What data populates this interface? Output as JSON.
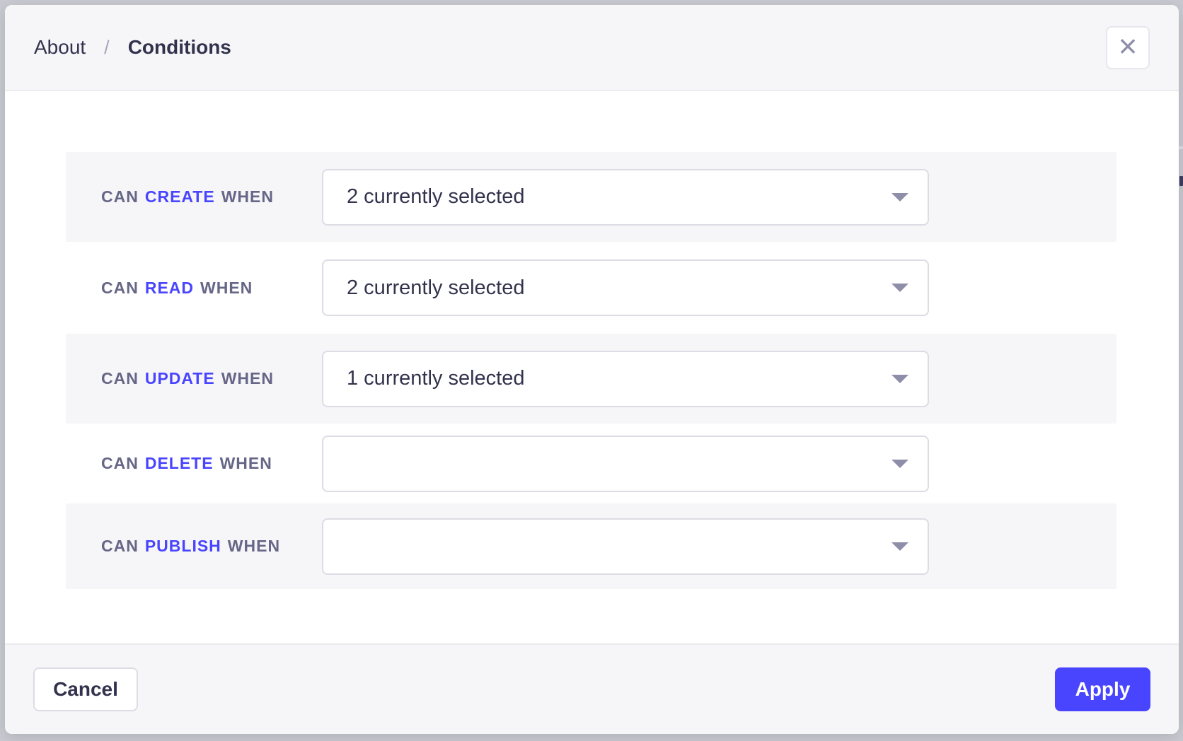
{
  "header": {
    "breadcrumb": {
      "parent": "About",
      "separator": "/",
      "current": "Conditions"
    }
  },
  "icons": {
    "close": "×",
    "dropdown_caret": "caret-down"
  },
  "rows": [
    {
      "prefix": "CAN",
      "action": "CREATE",
      "suffix": "WHEN",
      "value": "2 currently selected"
    },
    {
      "prefix": "CAN",
      "action": "READ",
      "suffix": "WHEN",
      "value": "2 currently selected"
    },
    {
      "prefix": "CAN",
      "action": "UPDATE",
      "suffix": "WHEN",
      "value": "1 currently selected"
    },
    {
      "prefix": "CAN",
      "action": "DELETE",
      "suffix": "WHEN",
      "value": ""
    },
    {
      "prefix": "CAN",
      "action": "PUBLISH",
      "suffix": "WHEN",
      "value": ""
    }
  ],
  "footer": {
    "cancel_label": "Cancel",
    "apply_label": "Apply"
  },
  "colors": {
    "accent": "#4945ff",
    "label_muted": "#666687",
    "text_dark": "#32324d",
    "stripe_bg": "#f6f6f9",
    "icon_gray": "#8e8ea9"
  }
}
